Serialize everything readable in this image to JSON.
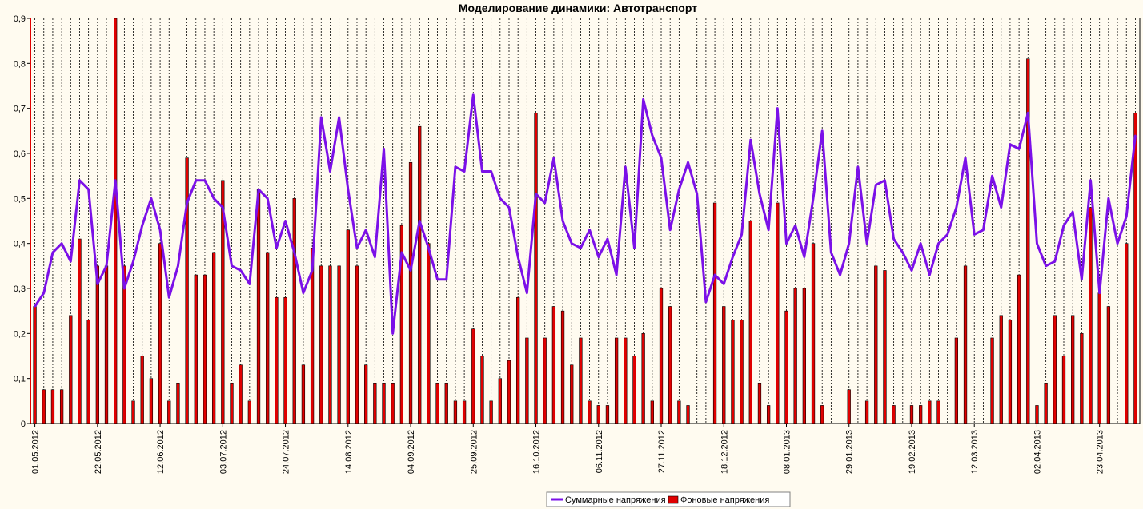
{
  "chart_data": {
    "type": "bar+line",
    "title": "Моделирование динамики: Автотранспорт",
    "ylim": [
      0,
      0.9
    ],
    "yticks": [
      "0",
      "0,1",
      "0,2",
      "0,3",
      "0,4",
      "0,5",
      "0,6",
      "0,7",
      "0,8",
      "0,9"
    ],
    "xtick_labels": [
      "01.05.2012",
      "22.05.2012",
      "12.06.2012",
      "03.07.2012",
      "24.07.2012",
      "14.08.2012",
      "04.09.2012",
      "25.09.2012",
      "16.10.2012",
      "06.11.2012",
      "27.11.2012",
      "18.12.2012",
      "08.01.2013",
      "29.01.2013",
      "19.02.2013",
      "12.03.2013",
      "02.04.2013",
      "23.04.2013"
    ],
    "legend": {
      "position": "bottom-center"
    },
    "grid": {
      "vertical_dotted": true
    },
    "colors": {
      "line": "#7b10e8",
      "bar_fill": "#e00000",
      "bar_edge": "#000000",
      "background": "#fffbf0"
    },
    "series": [
      {
        "name": "Суммарные напряжения",
        "kind": "line",
        "values": [
          0.26,
          0.29,
          0.38,
          0.4,
          0.36,
          0.54,
          0.52,
          0.31,
          0.35,
          0.54,
          0.3,
          0.36,
          0.44,
          0.5,
          0.43,
          0.28,
          0.35,
          0.49,
          0.54,
          0.54,
          0.5,
          0.48,
          0.35,
          0.34,
          0.31,
          0.52,
          0.5,
          0.39,
          0.45,
          0.38,
          0.29,
          0.34,
          0.68,
          0.56,
          0.68,
          0.52,
          0.39,
          0.43,
          0.37,
          0.61,
          0.2,
          0.38,
          0.34,
          0.45,
          0.39,
          0.32,
          0.32,
          0.57,
          0.56,
          0.73,
          0.56,
          0.56,
          0.5,
          0.48,
          0.37,
          0.29,
          0.51,
          0.49,
          0.59,
          0.45,
          0.4,
          0.39,
          0.43,
          0.37,
          0.41,
          0.33,
          0.57,
          0.39,
          0.72,
          0.64,
          0.59,
          0.43,
          0.52,
          0.58,
          0.51,
          0.27,
          0.33,
          0.31,
          0.37,
          0.42,
          0.63,
          0.51,
          0.43,
          0.7,
          0.4,
          0.44,
          0.37,
          0.5,
          0.65,
          0.38,
          0.33,
          0.4,
          0.57,
          0.4,
          0.53,
          0.54,
          0.41,
          0.38,
          0.34,
          0.4,
          0.33,
          0.4,
          0.42,
          0.48,
          0.59,
          0.42,
          0.43,
          0.55,
          0.48,
          0.62,
          0.61,
          0.69,
          0.4,
          0.35,
          0.36,
          0.44,
          0.47,
          0.32,
          0.54,
          0.29,
          0.5,
          0.4,
          0.46,
          0.64
        ]
      },
      {
        "name": "Фоновые напряжения",
        "kind": "bar",
        "values": [
          0.26,
          0.075,
          0.075,
          0.075,
          0.24,
          0.41,
          0.23,
          0.35,
          0.35,
          0.9,
          0.35,
          0.05,
          0.15,
          0.1,
          0.4,
          0.05,
          0.09,
          0.59,
          0.33,
          0.33,
          0.38,
          0.54,
          0.09,
          0.13,
          0.05,
          0.52,
          0.38,
          0.28,
          0.28,
          0.5,
          0.13,
          0.39,
          0.35,
          0.35,
          0.35,
          0.43,
          0.35,
          0.13,
          0.09,
          0.09,
          0.09,
          0.44,
          0.58,
          0.66,
          0.4,
          0.09,
          0.09,
          0.05,
          0.05,
          0.21,
          0.15,
          0.05,
          0.1,
          0.14,
          0.28,
          0.19,
          0.69,
          0.19,
          0.26,
          0.25,
          0.13,
          0.19,
          0.05,
          0.04,
          0.04,
          0.19,
          0.19,
          0.15,
          0.2,
          0.05,
          0.3,
          0.26,
          0.05,
          0.04,
          0,
          0,
          0.49,
          0.26,
          0.23,
          0.23,
          0.45,
          0.09,
          0.04,
          0.49,
          0.25,
          0.3,
          0.3,
          0.4,
          0.04,
          0,
          0,
          0.075,
          0,
          0.05,
          0.35,
          0.34,
          0.04,
          0,
          0.04,
          0.04,
          0.05,
          0.05,
          0,
          0.19,
          0.35,
          0,
          0,
          0.19,
          0.24,
          0.23,
          0.33,
          0.81,
          0.04,
          0.09,
          0.24,
          0.15,
          0.24,
          0.2,
          0.48,
          0.29,
          0.26,
          0,
          0.4,
          0.69
        ]
      }
    ]
  }
}
